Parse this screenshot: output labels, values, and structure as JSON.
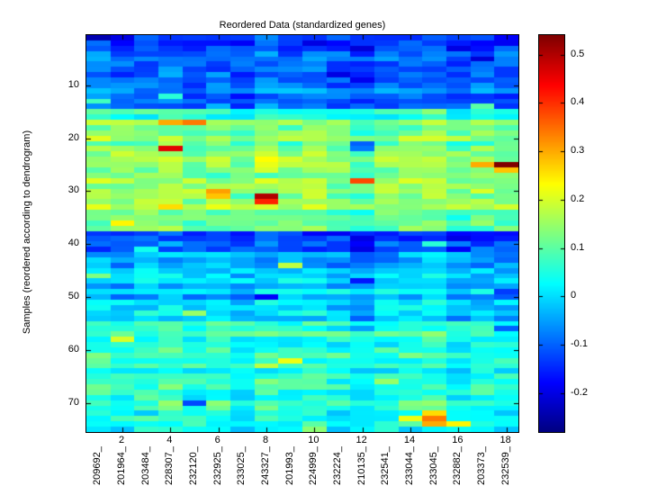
{
  "chart_data": {
    "type": "heatmap",
    "title": "Reordered Data (standardized genes)",
    "xlabel": "",
    "ylabel": "Samples (reordered according to dendrogram)",
    "n_rows": 75,
    "n_cols": 18,
    "x_ticks": [
      2,
      4,
      6,
      8,
      10,
      12,
      14,
      16,
      18
    ],
    "y_ticks": [
      10,
      20,
      30,
      40,
      50,
      60,
      70
    ],
    "x_category_labels": [
      "209692_",
      "201964_",
      "203484_",
      "228307_",
      "232120_",
      "232925_",
      "233025_",
      "243327_",
      "201993_",
      "224999_",
      "232224_",
      "210135_",
      "232541_",
      "233044_",
      "233045_",
      "232882_",
      "203373_",
      "232539_"
    ],
    "colorbar": {
      "colormap": "jet",
      "vmin": -0.28,
      "vmax": 0.54,
      "ticks": [
        0.5,
        0.4,
        0.3,
        0.2,
        0.1,
        0,
        -0.1,
        -0.2
      ]
    },
    "value_model": {
      "seed": 42,
      "row_noise": 0.035,
      "cell_noise": 0.05,
      "row_bands": [
        {
          "from": 1,
          "to": 3,
          "mean": -0.13
        },
        {
          "from": 4,
          "to": 14,
          "mean": -0.09
        },
        {
          "from": 15,
          "to": 16,
          "mean": 0.04
        },
        {
          "from": 17,
          "to": 37,
          "mean": 0.13
        },
        {
          "from": 38,
          "to": 41,
          "mean": -0.12
        },
        {
          "from": 42,
          "to": 54,
          "mean": -0.02
        },
        {
          "from": 55,
          "to": 75,
          "mean": 0.05
        }
      ],
      "col_bias": [
        0.01,
        0.0,
        0.01,
        0.02,
        -0.01,
        0.01,
        -0.02,
        0.02,
        0.0,
        0.01,
        -0.01,
        -0.04,
        0.0,
        0.01,
        0.02,
        -0.02,
        0.0,
        -0.01
      ],
      "hotspots": [
        {
          "row": 1,
          "col": 1,
          "value": -0.24
        },
        {
          "row": 1,
          "col": 2,
          "value": -0.2
        },
        {
          "row": 2,
          "col": 10,
          "value": -0.2
        },
        {
          "row": 3,
          "col": 16,
          "value": -0.2
        },
        {
          "row": 5,
          "col": 17,
          "value": -0.21
        },
        {
          "row": 8,
          "col": 11,
          "value": -0.2
        },
        {
          "row": 9,
          "col": 12,
          "value": -0.19
        },
        {
          "row": 12,
          "col": 4,
          "value": 0.06
        },
        {
          "row": 13,
          "col": 1,
          "value": 0.08
        },
        {
          "row": 14,
          "col": 17,
          "value": 0.1
        },
        {
          "row": 17,
          "col": 4,
          "value": 0.3
        },
        {
          "row": 17,
          "col": 5,
          "value": 0.34
        },
        {
          "row": 21,
          "col": 12,
          "value": -0.1
        },
        {
          "row": 22,
          "col": 12,
          "value": -0.08
        },
        {
          "row": 22,
          "col": 4,
          "value": 0.46
        },
        {
          "row": 25,
          "col": 17,
          "value": 0.3
        },
        {
          "row": 25,
          "col": 18,
          "value": 0.55
        },
        {
          "row": 26,
          "col": 18,
          "value": 0.28
        },
        {
          "row": 28,
          "col": 12,
          "value": 0.38
        },
        {
          "row": 30,
          "col": 6,
          "value": 0.31
        },
        {
          "row": 31,
          "col": 6,
          "value": 0.28
        },
        {
          "row": 31,
          "col": 8,
          "value": 0.5
        },
        {
          "row": 32,
          "col": 8,
          "value": 0.41
        },
        {
          "row": 33,
          "col": 4,
          "value": 0.26
        },
        {
          "row": 36,
          "col": 2,
          "value": 0.24
        },
        {
          "row": 40,
          "col": 15,
          "value": 0.06
        },
        {
          "row": 41,
          "col": 3,
          "value": 0.04
        },
        {
          "row": 44,
          "col": 9,
          "value": 0.18
        },
        {
          "row": 46,
          "col": 1,
          "value": 0.13
        },
        {
          "row": 47,
          "col": 12,
          "value": -0.16
        },
        {
          "row": 49,
          "col": 18,
          "value": -0.13
        },
        {
          "row": 50,
          "col": 8,
          "value": -0.18
        },
        {
          "row": 53,
          "col": 5,
          "value": 0.15
        },
        {
          "row": 56,
          "col": 18,
          "value": -0.1
        },
        {
          "row": 58,
          "col": 2,
          "value": 0.2
        },
        {
          "row": 62,
          "col": 9,
          "value": 0.22
        },
        {
          "row": 63,
          "col": 8,
          "value": 0.18
        },
        {
          "row": 66,
          "col": 13,
          "value": 0.15
        },
        {
          "row": 70,
          "col": 5,
          "value": -0.12
        },
        {
          "row": 72,
          "col": 15,
          "value": 0.26
        },
        {
          "row": 73,
          "col": 14,
          "value": 0.22
        },
        {
          "row": 73,
          "col": 15,
          "value": 0.34
        },
        {
          "row": 74,
          "col": 15,
          "value": 0.3
        },
        {
          "row": 74,
          "col": 16,
          "value": 0.24
        },
        {
          "row": 75,
          "col": 10,
          "value": 0.14
        }
      ]
    }
  }
}
